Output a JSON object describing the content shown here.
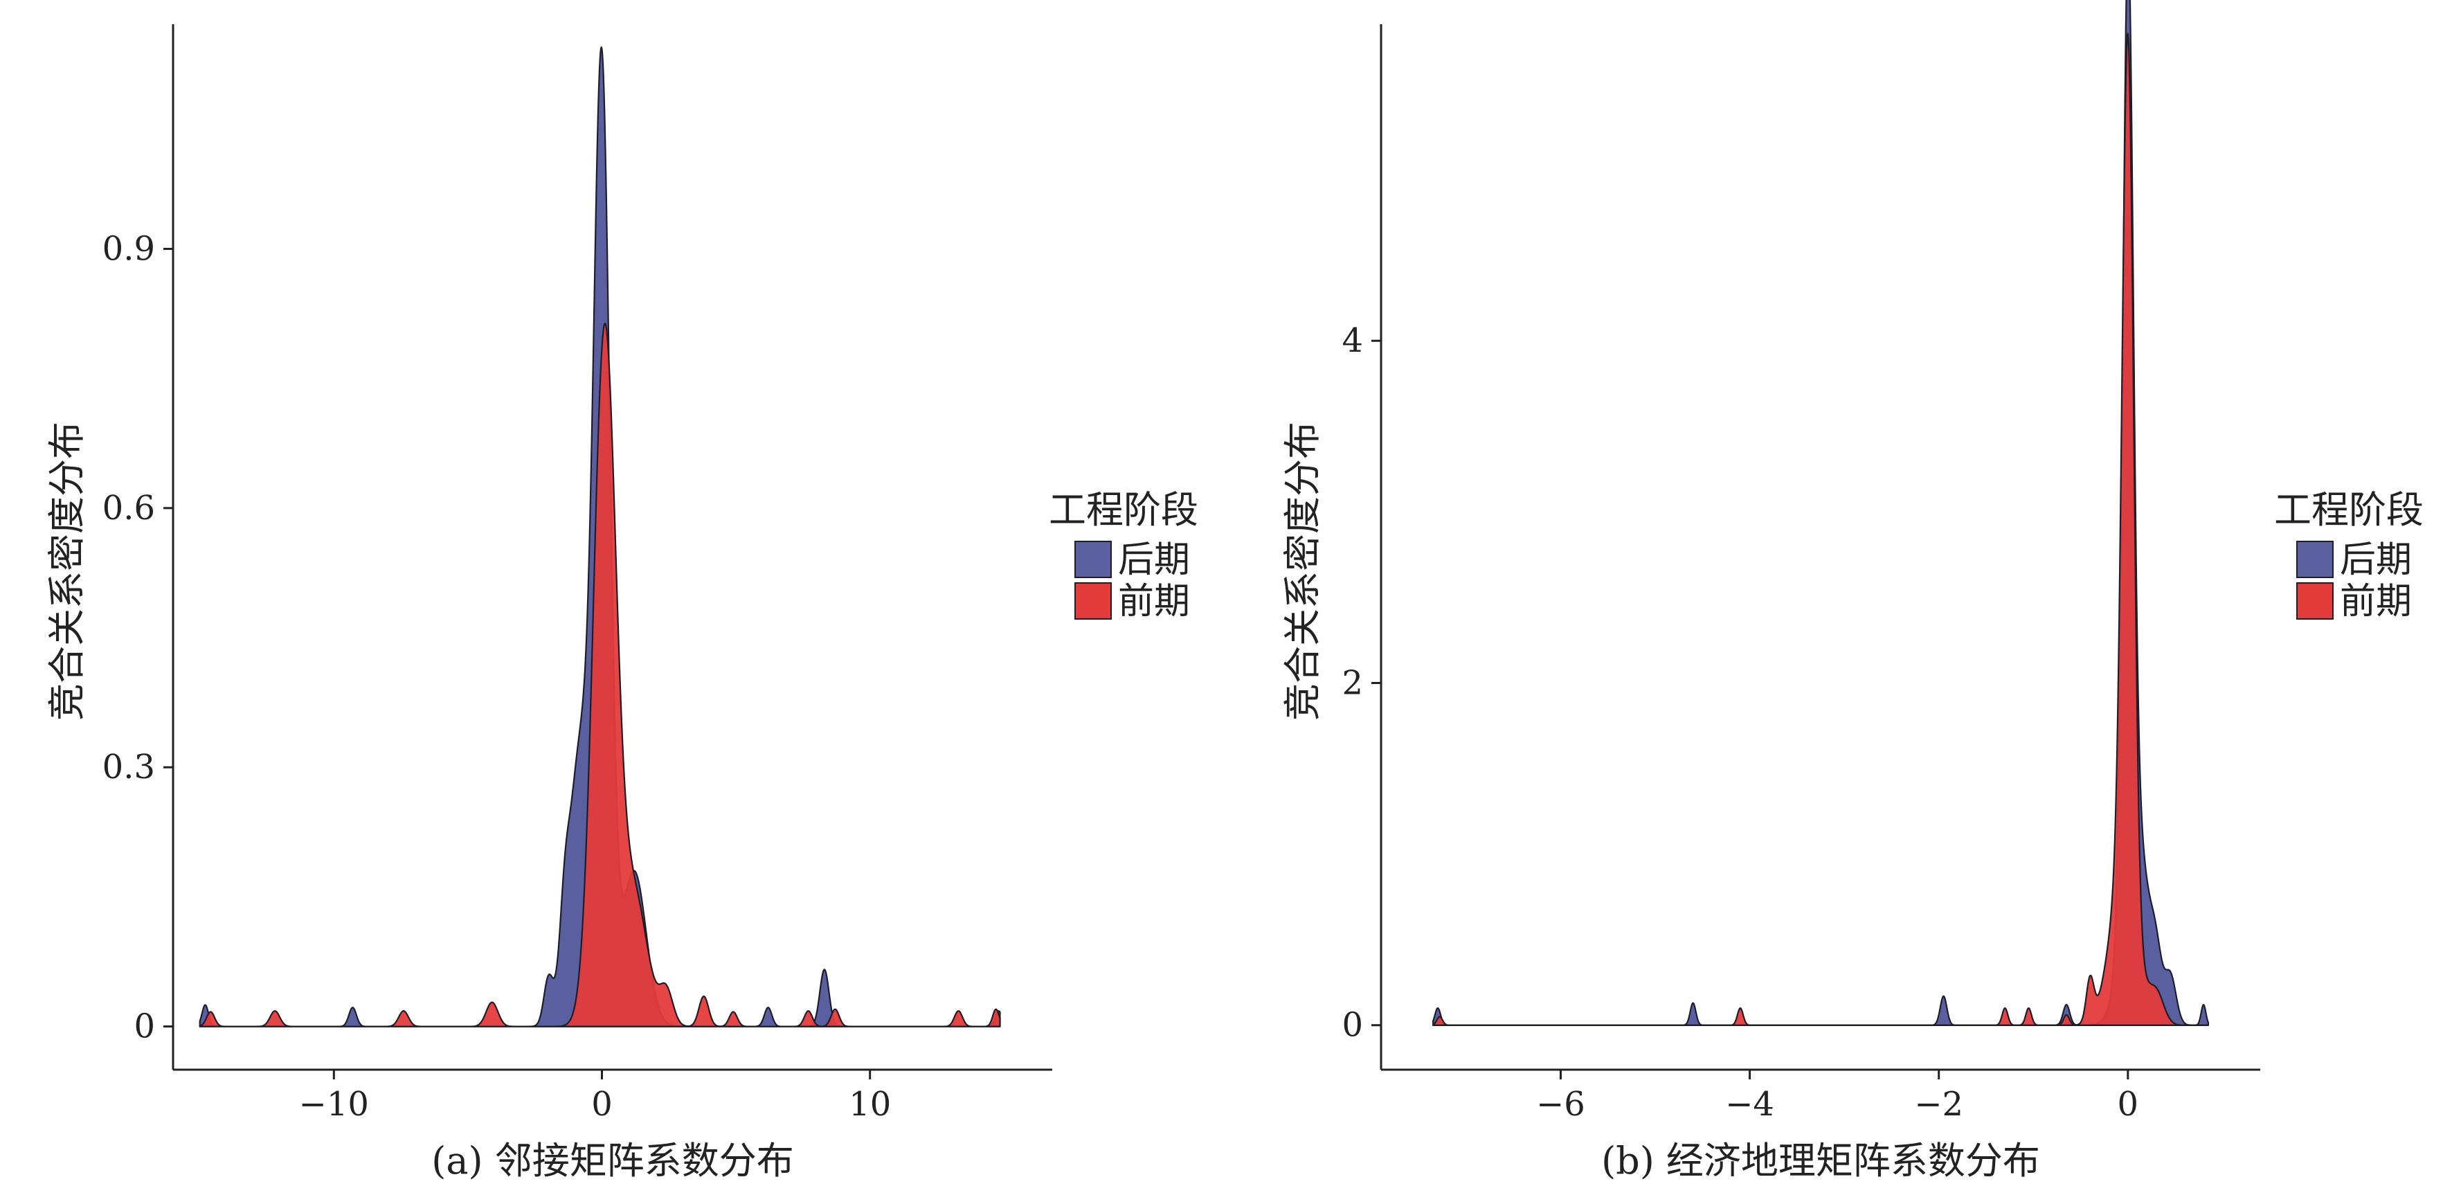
{
  "chart_data": [
    {
      "type": "area",
      "xlabel": "(a) 邻接矩阵系数分布",
      "ylabel": "竞合关系密度分布",
      "xlim": [
        -16,
        16.8
      ],
      "ylim": [
        -0.05,
        1.16
      ],
      "xticks": [
        -10,
        0,
        10
      ],
      "yticks": [
        0,
        0.3,
        0.6,
        0.9
      ],
      "ytick_labels": [
        "0",
        "0.3",
        "0.6",
        "0.9"
      ],
      "grid": false,
      "legend": {
        "title": "工程阶段",
        "position": "right"
      },
      "series": [
        {
          "name": "后期",
          "color": "#5a5fa0",
          "baseline": 0,
          "components": [
            {
              "type": "gauss",
              "x0": 0,
              "amp": 1.06,
              "sigma": 0.3
            },
            {
              "type": "gauss",
              "x0": -0.8,
              "amp": 0.32,
              "sigma": 0.45
            },
            {
              "type": "gauss",
              "x0": 1.2,
              "amp": 0.18,
              "sigma": 0.45
            },
            {
              "type": "gauss",
              "x0": -2.0,
              "amp": 0.05,
              "sigma": 0.17
            },
            {
              "type": "gauss",
              "x0": -1.4,
              "amp": 0.06,
              "sigma": 0.17
            },
            {
              "type": "gauss",
              "x0": -9.3,
              "amp": 0.022,
              "sigma": 0.14
            },
            {
              "type": "gauss",
              "x0": -14.8,
              "amp": 0.025,
              "sigma": 0.12
            },
            {
              "type": "gauss",
              "x0": 6.2,
              "amp": 0.022,
              "sigma": 0.14
            },
            {
              "type": "gauss",
              "x0": 8.3,
              "amp": 0.066,
              "sigma": 0.17
            },
            {
              "type": "gauss",
              "x0": 14.8,
              "amp": 0.018,
              "sigma": 0.12
            }
          ]
        },
        {
          "name": "前期",
          "color": "#e43b3b",
          "baseline": 0,
          "components": [
            {
              "type": "gauss",
              "x0": 0.1,
              "amp": 0.8,
              "sigma": 0.42
            },
            {
              "type": "gauss",
              "x0": 1.2,
              "amp": 0.15,
              "sigma": 0.5
            },
            {
              "type": "gauss",
              "x0": -14.6,
              "amp": 0.017,
              "sigma": 0.15
            },
            {
              "type": "gauss",
              "x0": -12.2,
              "amp": 0.018,
              "sigma": 0.18
            },
            {
              "type": "gauss",
              "x0": -7.4,
              "amp": 0.018,
              "sigma": 0.18
            },
            {
              "type": "gauss",
              "x0": -4.1,
              "amp": 0.028,
              "sigma": 0.22
            },
            {
              "type": "gauss",
              "x0": 2.4,
              "amp": 0.04,
              "sigma": 0.25
            },
            {
              "type": "gauss",
              "x0": 3.8,
              "amp": 0.035,
              "sigma": 0.18
            },
            {
              "type": "gauss",
              "x0": 4.9,
              "amp": 0.017,
              "sigma": 0.15
            },
            {
              "type": "gauss",
              "x0": 7.7,
              "amp": 0.018,
              "sigma": 0.15
            },
            {
              "type": "gauss",
              "x0": 8.7,
              "amp": 0.02,
              "sigma": 0.15
            },
            {
              "type": "gauss",
              "x0": 13.3,
              "amp": 0.018,
              "sigma": 0.15
            },
            {
              "type": "gauss",
              "x0": 14.7,
              "amp": 0.02,
              "sigma": 0.12
            }
          ]
        }
      ]
    },
    {
      "type": "area",
      "xlabel": "(b) 经济地理矩阵系数分布",
      "ylabel": "竞合关系密度分布",
      "xlim": [
        -7.9,
        1.4
      ],
      "ylim": [
        -0.26,
        5.85
      ],
      "xticks": [
        -6,
        -4,
        -2,
        0
      ],
      "yticks": [
        0,
        2,
        4
      ],
      "ytick_labels": [
        "0",
        "2",
        "4"
      ],
      "grid": false,
      "legend": {
        "title": "工程阶段",
        "position": "right"
      },
      "series": [
        {
          "name": "后期",
          "color": "#5a5fa0",
          "baseline": 0,
          "components": [
            {
              "type": "gauss",
              "x0": 0,
              "amp": 5.35,
              "sigma": 0.055
            },
            {
              "type": "gauss",
              "x0": 0.08,
              "amp": 1.2,
              "sigma": 0.13
            },
            {
              "type": "gauss",
              "x0": 0.3,
              "amp": 0.28,
              "sigma": 0.06
            },
            {
              "type": "gauss",
              "x0": 0.45,
              "amp": 0.28,
              "sigma": 0.06
            },
            {
              "type": "gauss",
              "x0": -0.65,
              "amp": 0.12,
              "sigma": 0.035
            },
            {
              "type": "gauss",
              "x0": -7.3,
              "amp": 0.1,
              "sigma": 0.03
            },
            {
              "type": "gauss",
              "x0": -4.6,
              "amp": 0.13,
              "sigma": 0.03
            },
            {
              "type": "gauss",
              "x0": -1.95,
              "amp": 0.17,
              "sigma": 0.035
            },
            {
              "type": "gauss",
              "x0": 0.8,
              "amp": 0.12,
              "sigma": 0.025
            }
          ]
        },
        {
          "name": "前期",
          "color": "#e43b3b",
          "baseline": 0,
          "components": [
            {
              "type": "gauss",
              "x0": 0,
              "amp": 4.95,
              "sigma": 0.06
            },
            {
              "type": "gauss",
              "x0": -0.05,
              "amp": 0.9,
              "sigma": 0.14
            },
            {
              "type": "gauss",
              "x0": 0.3,
              "amp": 0.18,
              "sigma": 0.08
            },
            {
              "type": "gauss",
              "x0": -7.28,
              "amp": 0.05,
              "sigma": 0.03
            },
            {
              "type": "gauss",
              "x0": -4.1,
              "amp": 0.1,
              "sigma": 0.03
            },
            {
              "type": "gauss",
              "x0": -1.3,
              "amp": 0.1,
              "sigma": 0.03
            },
            {
              "type": "gauss",
              "x0": -1.05,
              "amp": 0.1,
              "sigma": 0.03
            },
            {
              "type": "gauss",
              "x0": -0.65,
              "amp": 0.06,
              "sigma": 0.03
            },
            {
              "type": "gauss",
              "x0": -0.4,
              "amp": 0.25,
              "sigma": 0.04
            }
          ]
        }
      ]
    }
  ]
}
